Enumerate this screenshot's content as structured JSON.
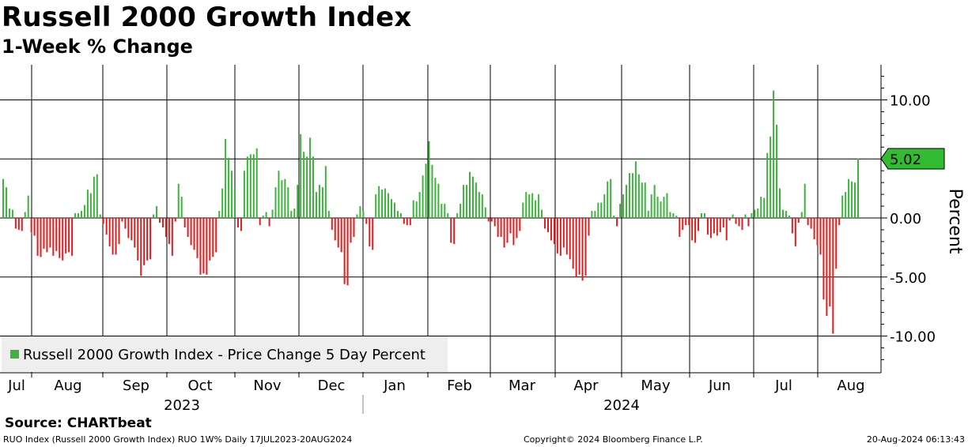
{
  "chart_data": {
    "type": "bar",
    "title": "Russell 2000 Growth Index",
    "subtitle": "1-Week % Change",
    "ylabel": "Percent",
    "ylim": [
      -13,
      13
    ],
    "yticks": [
      10,
      5,
      0,
      -5,
      -10
    ],
    "ytick_labels": [
      "10.00",
      "5.00",
      "0.00",
      "-5.00",
      "-10.00"
    ],
    "grid": true,
    "legend_position": "bottom-left",
    "legend_label": "Russell 2000 Growth Index - Price Change 5 Day Percent",
    "last_value_label": "5.02",
    "last_value": 5.02,
    "month_labels": [
      "Jul",
      "Aug",
      "Sep",
      "Oct",
      "Nov",
      "Dec",
      "Jan",
      "Feb",
      "Mar",
      "Apr",
      "May",
      "Jun",
      "Jul",
      "Aug"
    ],
    "year_labels": [
      "2023",
      "2024"
    ],
    "positive_color": "#3cb43c",
    "negative_color": "#dc1e1e",
    "series": [
      {
        "name": "Russell 2000 Growth Index - Price Change 5 Day Percent",
        "values": [
          3.3,
          2.6,
          0.8,
          0.7,
          -0.9,
          -1.0,
          -1.1,
          0.5,
          1.9,
          -1.2,
          -1.5,
          -3.2,
          -3.3,
          -2.6,
          -2.9,
          -2.5,
          -3.2,
          -2.8,
          -3.4,
          -3.6,
          -3.0,
          -2.9,
          -3.2,
          0.4,
          0.4,
          0.6,
          1.1,
          2.4,
          2.1,
          3.5,
          3.7,
          0.3,
          -0.5,
          -1.4,
          -2.4,
          -3.1,
          -3.1,
          -2.2,
          -0.3,
          -0.9,
          -1.7,
          -1.9,
          -2.5,
          -3.6,
          -4.9,
          -4.0,
          -3.6,
          -3.5,
          0.3,
          1.0,
          -0.4,
          -0.8,
          -1.6,
          -2.2,
          -3.2,
          -0.3,
          2.9,
          1.8,
          -0.8,
          -1.6,
          -2.3,
          -2.7,
          -3.4,
          -4.8,
          -4.7,
          -4.8,
          -3.6,
          -3.3,
          -2.9,
          0.6,
          2.5,
          6.7,
          5.1,
          4.0,
          2.6,
          -0.8,
          -1.1,
          4.0,
          5.2,
          5.4,
          5.4,
          5.9,
          -0.6,
          0.2,
          0.5,
          -0.7,
          0.7,
          2.6,
          4.0,
          3.2,
          3.3,
          2.6,
          0.6,
          0.8,
          2.8,
          7.1,
          5.6,
          5.2,
          6.8,
          5.2,
          2.2,
          2.8,
          2.6,
          4.4,
          0.6,
          -1.0,
          -1.9,
          -2.5,
          -2.9,
          -5.6,
          -5.7,
          -2.1,
          -1.6,
          0.3,
          1.0,
          0.6,
          -0.5,
          -2.4,
          -2.7,
          2.0,
          2.7,
          2.4,
          2.5,
          2.1,
          1.6,
          1.3,
          0.6,
          0.4,
          -0.5,
          -0.6,
          -0.6,
          1.5,
          1.4,
          2.2,
          3.6,
          4.6,
          6.5,
          4.5,
          3.4,
          2.9,
          1.2,
          1.2,
          0.4,
          -2.1,
          -2.2,
          0.4,
          1.2,
          2.8,
          2.8,
          3.9,
          3.5,
          3.0,
          2.2,
          2.0,
          0.9,
          -0.3,
          -0.3,
          -0.7,
          -1.6,
          -1.6,
          -2.5,
          -2.1,
          -1.3,
          -2.3,
          -1.7,
          -1.1,
          1.3,
          2.2,
          2.0,
          2.1,
          1.5,
          2.0,
          0.7,
          -0.9,
          -1.2,
          -1.9,
          -2.2,
          -3.0,
          -3.2,
          -2.5,
          -3.1,
          -3.5,
          -4.3,
          -5.0,
          -4.8,
          -5.3,
          -4.9,
          -1.5,
          0.6,
          0.6,
          1.3,
          1.3,
          2.0,
          3.1,
          3.3,
          0.2,
          -0.7,
          1.2,
          2.0,
          2.8,
          3.8,
          3.8,
          4.8,
          3.7,
          3.0,
          3.0,
          0.6,
          2.0,
          2.8,
          1.8,
          1.4,
          1.8,
          2.1,
          0.5,
          0.4,
          0.2,
          -1.6,
          -1.0,
          -0.6,
          -0.6,
          -1.9,
          -2.1,
          -1.1,
          0.4,
          0.4,
          -1.4,
          -1.7,
          -1.3,
          -1.5,
          -1.2,
          -0.8,
          -1.9,
          -0.2,
          0.3,
          -0.5,
          -0.7,
          -1.0,
          0.3,
          -0.7,
          0.4,
          0.7,
          0.8,
          1.8,
          1.7,
          5.5,
          6.9,
          10.8,
          7.9,
          2.5,
          0.7,
          0.6,
          0.2,
          -1.3,
          -2.4,
          -0.4,
          0.5,
          2.9,
          -0.6,
          -0.9,
          -1.8,
          -2.3,
          -3.1,
          -6.9,
          -8.3,
          -7.5,
          -9.8,
          -4.3,
          -0.6,
          1.9,
          2.2,
          3.3,
          3.1,
          3.0,
          5.02
        ]
      }
    ]
  },
  "footer": {
    "source": "Source: CHARTbeat",
    "left": "RUO Index (Russell 2000 Growth Index) RUO 1W% Daily 17JUL2023-20AUG2024",
    "center": "Copyright© 2024 Bloomberg Finance L.P.",
    "right": "20-Aug-2024 06:13:43"
  }
}
